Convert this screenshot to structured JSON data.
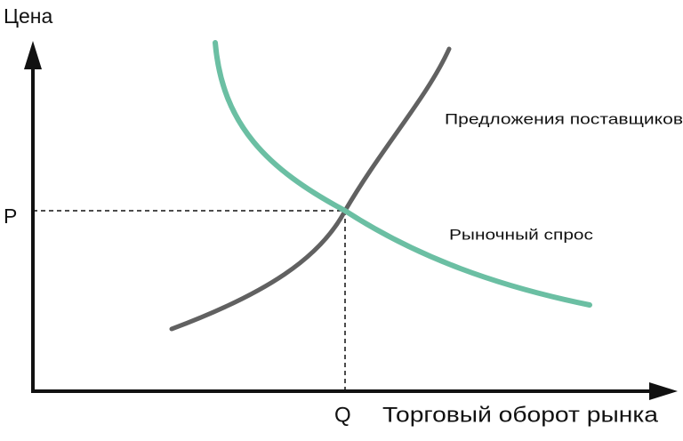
{
  "axes": {
    "y_label": "Цена",
    "x_label": "Торговый оборот рынка",
    "price_mark": "P",
    "quantity_mark": "Q"
  },
  "curves": {
    "supply_label": "Предложения поставщиков",
    "demand_label": "Рыночный спрос"
  }
}
